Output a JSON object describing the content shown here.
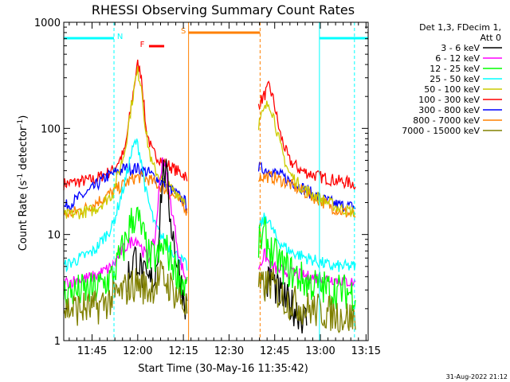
{
  "chart_data": {
    "type": "line",
    "title": "RHESSI Observing Summary Count Rates",
    "xlabel": "Start Time (30-May-16 11:35:42)",
    "ylabel_base": "Count Rate (s",
    "ylabel_sup1": "-1",
    "ylabel_mid": " detector",
    "ylabel_sup2": "-1",
    "ylabel_end": ")",
    "x_unit": "minutes after 11:35:42",
    "xlim": [
      0,
      100
    ],
    "ylim": [
      1,
      1000
    ],
    "ylog": true,
    "y_ticks": [
      {
        "value": 1,
        "label": "1"
      },
      {
        "value": 10,
        "label": "10"
      },
      {
        "value": 100,
        "label": "100"
      },
      {
        "value": 1000,
        "label": "1000"
      }
    ],
    "x_ticks": [
      {
        "value": 9.3,
        "label": "11:45"
      },
      {
        "value": 24.3,
        "label": "12:00"
      },
      {
        "value": 39.3,
        "label": "12:15"
      },
      {
        "value": 54.3,
        "label": "12:30"
      },
      {
        "value": 69.3,
        "label": "12:45"
      },
      {
        "value": 84.3,
        "label": "13:00"
      },
      {
        "value": 99.3,
        "label": "13:15"
      }
    ],
    "legend_header": [
      "Det 1,3, FDecim 1,",
      "Att 0"
    ],
    "legend_placement": "right",
    "series": [
      {
        "name": "3 - 6 keV",
        "color": "#000000"
      },
      {
        "name": "6 - 12 keV",
        "color": "#ff00ff"
      },
      {
        "name": "12 - 25 keV",
        "color": "#00ff00"
      },
      {
        "name": "25 - 50 keV",
        "color": "#00ffff"
      },
      {
        "name": "50 - 100 keV",
        "color": "#cccc00"
      },
      {
        "name": "100 - 300 keV",
        "color": "#ff0000"
      },
      {
        "name": "300 - 800 keV",
        "color": "#0000ff"
      },
      {
        "name": "800 - 7000 keV",
        "color": "#ff8000"
      },
      {
        "name": "7000 - 15000 keV",
        "color": "#808000"
      }
    ],
    "curves": [
      {
        "series": 5,
        "points": [
          [
            0,
            30
          ],
          [
            10,
            33
          ],
          [
            16,
            40
          ],
          [
            20,
            60
          ],
          [
            22,
            150
          ],
          [
            23.5,
            300
          ],
          [
            24.3,
            400
          ],
          [
            25.5,
            320
          ],
          [
            27,
            100
          ],
          [
            29,
            60
          ],
          [
            33,
            48
          ],
          [
            37,
            40
          ],
          [
            40,
            36
          ],
          [
            40.5,
            30
          ]
        ]
      },
      {
        "series": 5,
        "points": [
          [
            64,
            170
          ],
          [
            65,
            185
          ],
          [
            66.5,
            220
          ],
          [
            67.5,
            250
          ],
          [
            69,
            180
          ],
          [
            71,
            90
          ],
          [
            74,
            50
          ],
          [
            78,
            40
          ],
          [
            84,
            35
          ],
          [
            90,
            32
          ],
          [
            96,
            30
          ]
        ]
      },
      {
        "series": 6,
        "points": [
          [
            0,
            18
          ],
          [
            8,
            25
          ],
          [
            14,
            35
          ],
          [
            20,
            42
          ],
          [
            24,
            42
          ],
          [
            28,
            38
          ],
          [
            33,
            30
          ],
          [
            37,
            24
          ],
          [
            40,
            20
          ],
          [
            40.5,
            18
          ]
        ]
      },
      {
        "series": 6,
        "points": [
          [
            64,
            42
          ],
          [
            68,
            40
          ],
          [
            72,
            35
          ],
          [
            78,
            28
          ],
          [
            84,
            22
          ],
          [
            90,
            19
          ],
          [
            96,
            18
          ]
        ]
      },
      {
        "series": 7,
        "points": [
          [
            0,
            15
          ],
          [
            8,
            18
          ],
          [
            14,
            23
          ],
          [
            20,
            30
          ],
          [
            24,
            35
          ],
          [
            28,
            33
          ],
          [
            33,
            27
          ],
          [
            37,
            22
          ],
          [
            40,
            18
          ],
          [
            40.5,
            16
          ]
        ]
      },
      {
        "series": 7,
        "points": [
          [
            64,
            35
          ],
          [
            68,
            35
          ],
          [
            72,
            32
          ],
          [
            78,
            26
          ],
          [
            84,
            21
          ],
          [
            90,
            17
          ],
          [
            96,
            15
          ]
        ]
      },
      {
        "series": 4,
        "points": [
          [
            0,
            15
          ],
          [
            10,
            17
          ],
          [
            16,
            24
          ],
          [
            20,
            60
          ],
          [
            22,
            150
          ],
          [
            23.5,
            280
          ],
          [
            24.3,
            340
          ],
          [
            25.5,
            260
          ],
          [
            27,
            90
          ],
          [
            29,
            45
          ],
          [
            33,
            30
          ],
          [
            37,
            25
          ],
          [
            40,
            21
          ]
        ]
      },
      {
        "series": 4,
        "points": [
          [
            64,
            110
          ],
          [
            65,
            130
          ],
          [
            66.5,
            160
          ],
          [
            67.5,
            175
          ],
          [
            69,
            130
          ],
          [
            71,
            70
          ],
          [
            74,
            38
          ],
          [
            78,
            28
          ],
          [
            84,
            22
          ],
          [
            90,
            18
          ],
          [
            96,
            16
          ]
        ]
      },
      {
        "series": 3,
        "points": [
          [
            0,
            5
          ],
          [
            10,
            7
          ],
          [
            16,
            12
          ],
          [
            20,
            30
          ],
          [
            22,
            55
          ],
          [
            23.5,
            75
          ],
          [
            24.3,
            70
          ],
          [
            25.5,
            50
          ],
          [
            27,
            25
          ],
          [
            30,
            12
          ],
          [
            34,
            8
          ],
          [
            38,
            6
          ],
          [
            40.5,
            5
          ]
        ]
      },
      {
        "series": 3,
        "points": [
          [
            64,
            11
          ],
          [
            65,
            13
          ],
          [
            66.5,
            15
          ],
          [
            68,
            12
          ],
          [
            70,
            9
          ],
          [
            74,
            7
          ],
          [
            80,
            6
          ],
          [
            88,
            5
          ],
          [
            96,
            5
          ]
        ]
      },
      {
        "series": 1,
        "points": [
          [
            0,
            3.5
          ],
          [
            10,
            4
          ],
          [
            16,
            5
          ],
          [
            19,
            7
          ],
          [
            21,
            8
          ],
          [
            23,
            9
          ],
          [
            24.3,
            9
          ],
          [
            26,
            7
          ],
          [
            28,
            6
          ],
          [
            30,
            9
          ],
          [
            31.5,
            30
          ],
          [
            32.5,
            55
          ],
          [
            33.5,
            40
          ],
          [
            34.5,
            25
          ],
          [
            36,
            14
          ],
          [
            38,
            6
          ],
          [
            40.5,
            3.5
          ]
        ]
      },
      {
        "series": 1,
        "points": [
          [
            64,
            5
          ],
          [
            66,
            6.5
          ],
          [
            68,
            5
          ],
          [
            72,
            4.5
          ],
          [
            80,
            4
          ],
          [
            88,
            3.8
          ],
          [
            96,
            3.5
          ]
        ]
      },
      {
        "series": 0,
        "points": [
          [
            21,
            4
          ],
          [
            23,
            6
          ],
          [
            24.3,
            6
          ],
          [
            26,
            4
          ],
          [
            28,
            3.5
          ],
          [
            30,
            4
          ],
          [
            31,
            8
          ],
          [
            32,
            25
          ],
          [
            33,
            45
          ],
          [
            34,
            30
          ],
          [
            35,
            15
          ],
          [
            37,
            6
          ],
          [
            39,
            3
          ],
          [
            40.5,
            2
          ]
        ]
      },
      {
        "series": 0,
        "points": [
          [
            66,
            3
          ],
          [
            68,
            4
          ],
          [
            70,
            3
          ],
          [
            72,
            2.5
          ],
          [
            76,
            2
          ],
          [
            80,
            1.5
          ]
        ]
      },
      {
        "series": 2,
        "points": [
          [
            0,
            2.8
          ],
          [
            10,
            3
          ],
          [
            16,
            4
          ],
          [
            20,
            8
          ],
          [
            22,
            13
          ],
          [
            23.5,
            15
          ],
          [
            24.3,
            14
          ],
          [
            26,
            10
          ],
          [
            28,
            6
          ],
          [
            31,
            6
          ],
          [
            33,
            8
          ],
          [
            35,
            6
          ],
          [
            38,
            4
          ],
          [
            40.5,
            3
          ]
        ]
      },
      {
        "series": 2,
        "points": [
          [
            64,
            8
          ],
          [
            66,
            10
          ],
          [
            68,
            7
          ],
          [
            72,
            5
          ],
          [
            80,
            3.5
          ],
          [
            88,
            3
          ],
          [
            96,
            2.8
          ]
        ]
      },
      {
        "series": 8,
        "points": [
          [
            0,
            2
          ],
          [
            10,
            2
          ],
          [
            16,
            2.5
          ],
          [
            20,
            3
          ],
          [
            24,
            3.5
          ],
          [
            28,
            3
          ],
          [
            32,
            4
          ],
          [
            34,
            3.5
          ],
          [
            38,
            2.5
          ],
          [
            40.5,
            2
          ]
        ]
      },
      {
        "series": 8,
        "points": [
          [
            64,
            3
          ],
          [
            68,
            3.5
          ],
          [
            72,
            2.5
          ],
          [
            80,
            2
          ],
          [
            88,
            1.8
          ],
          [
            96,
            1.6
          ]
        ]
      }
    ],
    "bands": [
      {
        "label": "N",
        "color": "#00ffff",
        "start": 0,
        "end": 16.5
      },
      {
        "label": "N",
        "color": "#00ffff",
        "start": 84,
        "end": 100
      },
      {
        "label": "S",
        "color": "#ff8000",
        "start": 41,
        "end": 64.5
      },
      {
        "label": "F",
        "color": "#ff0000",
        "start": 28,
        "end": 33
      }
    ],
    "vlines": [
      {
        "x": 16.5,
        "color": "#00ffff",
        "dashed": true
      },
      {
        "x": 84,
        "color": "#00ffff",
        "dashed": false
      },
      {
        "x": 95.5,
        "color": "#00ffff",
        "dashed": true
      },
      {
        "x": 41,
        "color": "#ff8000",
        "dashed": false
      },
      {
        "x": 64.5,
        "color": "#ff8000",
        "dashed": true
      }
    ],
    "gap": [
      41,
      64
    ]
  },
  "footer_timestamp": "31-Aug-2022 21:12"
}
